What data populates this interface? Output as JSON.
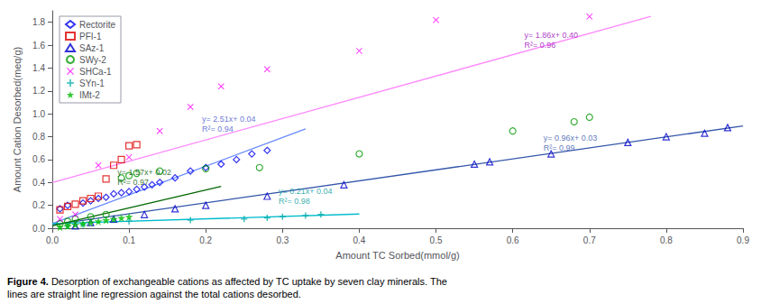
{
  "chart_data": {
    "type": "scatter",
    "xlabel": "Amount TC Sorbed(mmol/g)",
    "ylabel": "Amount Cation Desorbed(meq/g)",
    "xlim": [
      0.0,
      0.9
    ],
    "ylim": [
      0.0,
      1.9
    ],
    "xticks": [
      {
        "value": 0.0,
        "label": "0.0"
      },
      0.1,
      0.2,
      0.3,
      0.4,
      0.5,
      0.6,
      0.7,
      0.8,
      0.9
    ],
    "yticks": [
      {
        "value": 0.0,
        "label": "0.0"
      },
      0.2,
      0.4,
      0.6,
      0.8,
      {
        "value": 1.0,
        "label": "1.0"
      },
      1.2,
      1.4,
      1.6,
      1.8
    ],
    "grid": false,
    "legend": "upper left",
    "series": [
      {
        "name": "Rectorite",
        "type": "scatter",
        "color": "#0000EE",
        "marker": "diamond",
        "x": [
          0.01,
          0.02,
          0.04,
          0.05,
          0.06,
          0.07,
          0.08,
          0.09,
          0.1,
          0.11,
          0.12,
          0.13,
          0.14,
          0.16,
          0.18,
          0.2,
          0.22,
          0.24,
          0.26,
          0.28
        ],
        "y": [
          0.17,
          0.2,
          0.22,
          0.24,
          0.26,
          0.27,
          0.3,
          0.31,
          0.32,
          0.34,
          0.36,
          0.38,
          0.4,
          0.44,
          0.5,
          0.53,
          0.56,
          0.6,
          0.65,
          0.68
        ]
      },
      {
        "name": "PFI-1",
        "type": "scatter",
        "color": "#DD0000",
        "marker": "square",
        "x": [
          0.01,
          0.02,
          0.03,
          0.04,
          0.05,
          0.06,
          0.07,
          0.08,
          0.09,
          0.1,
          0.11
        ],
        "y": [
          0.16,
          0.19,
          0.21,
          0.24,
          0.26,
          0.28,
          0.43,
          0.55,
          0.6,
          0.72,
          0.73
        ]
      },
      {
        "name": "SAz-1",
        "type": "scatter",
        "color": "#0000CC",
        "marker": "triangle",
        "x": [
          0.03,
          0.05,
          0.08,
          0.12,
          0.16,
          0.2,
          0.28,
          0.38,
          0.55,
          0.57,
          0.65,
          0.75,
          0.8,
          0.85,
          0.88
        ],
        "y": [
          0.02,
          0.05,
          0.08,
          0.12,
          0.17,
          0.2,
          0.28,
          0.38,
          0.56,
          0.58,
          0.65,
          0.75,
          0.8,
          0.83,
          0.88
        ]
      },
      {
        "name": "SWy-2",
        "type": "scatter",
        "color": "#009900",
        "marker": "circle",
        "x": [
          0.01,
          0.02,
          0.03,
          0.05,
          0.07,
          0.09,
          0.1,
          0.11,
          0.14,
          0.2,
          0.27,
          0.4,
          0.6,
          0.68,
          0.7
        ],
        "y": [
          0.04,
          0.06,
          0.08,
          0.1,
          0.12,
          0.44,
          0.46,
          0.48,
          0.5,
          0.52,
          0.53,
          0.65,
          0.85,
          0.93,
          0.97
        ]
      },
      {
        "name": "SHCa-1",
        "type": "scatter",
        "color": "#FF00FF",
        "marker": "x",
        "x": [
          0.01,
          0.03,
          0.06,
          0.1,
          0.14,
          0.18,
          0.22,
          0.28,
          0.4,
          0.5,
          0.7
        ],
        "y": [
          0.08,
          0.12,
          0.55,
          0.62,
          0.85,
          1.06,
          1.24,
          1.39,
          1.55,
          1.82,
          1.85
        ]
      },
      {
        "name": "SYn-1",
        "type": "scatter",
        "color": "#00AAAA",
        "marker": "plus",
        "x": [
          0.02,
          0.04,
          0.1,
          0.18,
          0.25,
          0.28,
          0.3,
          0.33,
          0.35
        ],
        "y": [
          0.02,
          0.03,
          0.06,
          0.07,
          0.08,
          0.09,
          0.1,
          0.11,
          0.12
        ]
      },
      {
        "name": "IMt-2",
        "type": "scatter",
        "color": "#00BB00",
        "marker": "star",
        "x": [
          0.01,
          0.02,
          0.03,
          0.04,
          0.05,
          0.06,
          0.07,
          0.08,
          0.09,
          0.1
        ],
        "y": [
          0.01,
          0.02,
          0.03,
          0.04,
          0.05,
          0.06,
          0.07,
          0.08,
          0.09,
          0.1
        ]
      },
      {
        "type": "line",
        "color": "#FF88FF",
        "line_style": "solid",
        "x": [
          0.0,
          0.78
        ],
        "y": [
          0.4,
          1.8508
        ]
      },
      {
        "type": "line",
        "color": "#6688FF",
        "line_style": "solid",
        "x": [
          0.0,
          0.33
        ],
        "y": [
          0.04,
          0.8683
        ]
      },
      {
        "type": "line",
        "color": "#3355AA",
        "line_style": "solid",
        "x": [
          0.0,
          0.9
        ],
        "y": [
          0.03,
          0.894
        ]
      },
      {
        "type": "line",
        "color": "#00BBCC",
        "line_style": "solid",
        "x": [
          0.0,
          0.4
        ],
        "y": [
          0.04,
          0.124
        ]
      },
      {
        "type": "line",
        "color": "#006600",
        "line_style": "solid",
        "x": [
          0.0,
          0.22
        ],
        "y": [
          0.02,
          0.3654
        ]
      }
    ],
    "annotations": [
      {
        "text": "y= 1.86x+ 0.40\nR²= 0.96",
        "x": 0.615,
        "y": 1.56,
        "color": "#9900BB"
      },
      {
        "text": "y= 2.51x+ 0.04\nR²= 0.94",
        "x": 0.195,
        "y": 0.82,
        "color": "#4455CC"
      },
      {
        "text": "y= 0.96x+ 0.03\nR²= 0.99",
        "x": 0.64,
        "y": 0.66,
        "color": "#3355AA"
      },
      {
        "text": "y= 0.21x+ 0.04\nR²= 0.98",
        "x": 0.295,
        "y": 0.196,
        "color": "#009999"
      },
      {
        "text": "y= 1.57x+ 0.02\nR²= 0.97",
        "x": 0.085,
        "y": 0.355,
        "color": "#005500"
      }
    ],
    "caption": {
      "label": "Figure 4.",
      "text": "Desorption of exchangeable cations as affected by TC uptake by seven clay minerals. The\nlines are straight line regression against the total cations desorbed."
    }
  }
}
